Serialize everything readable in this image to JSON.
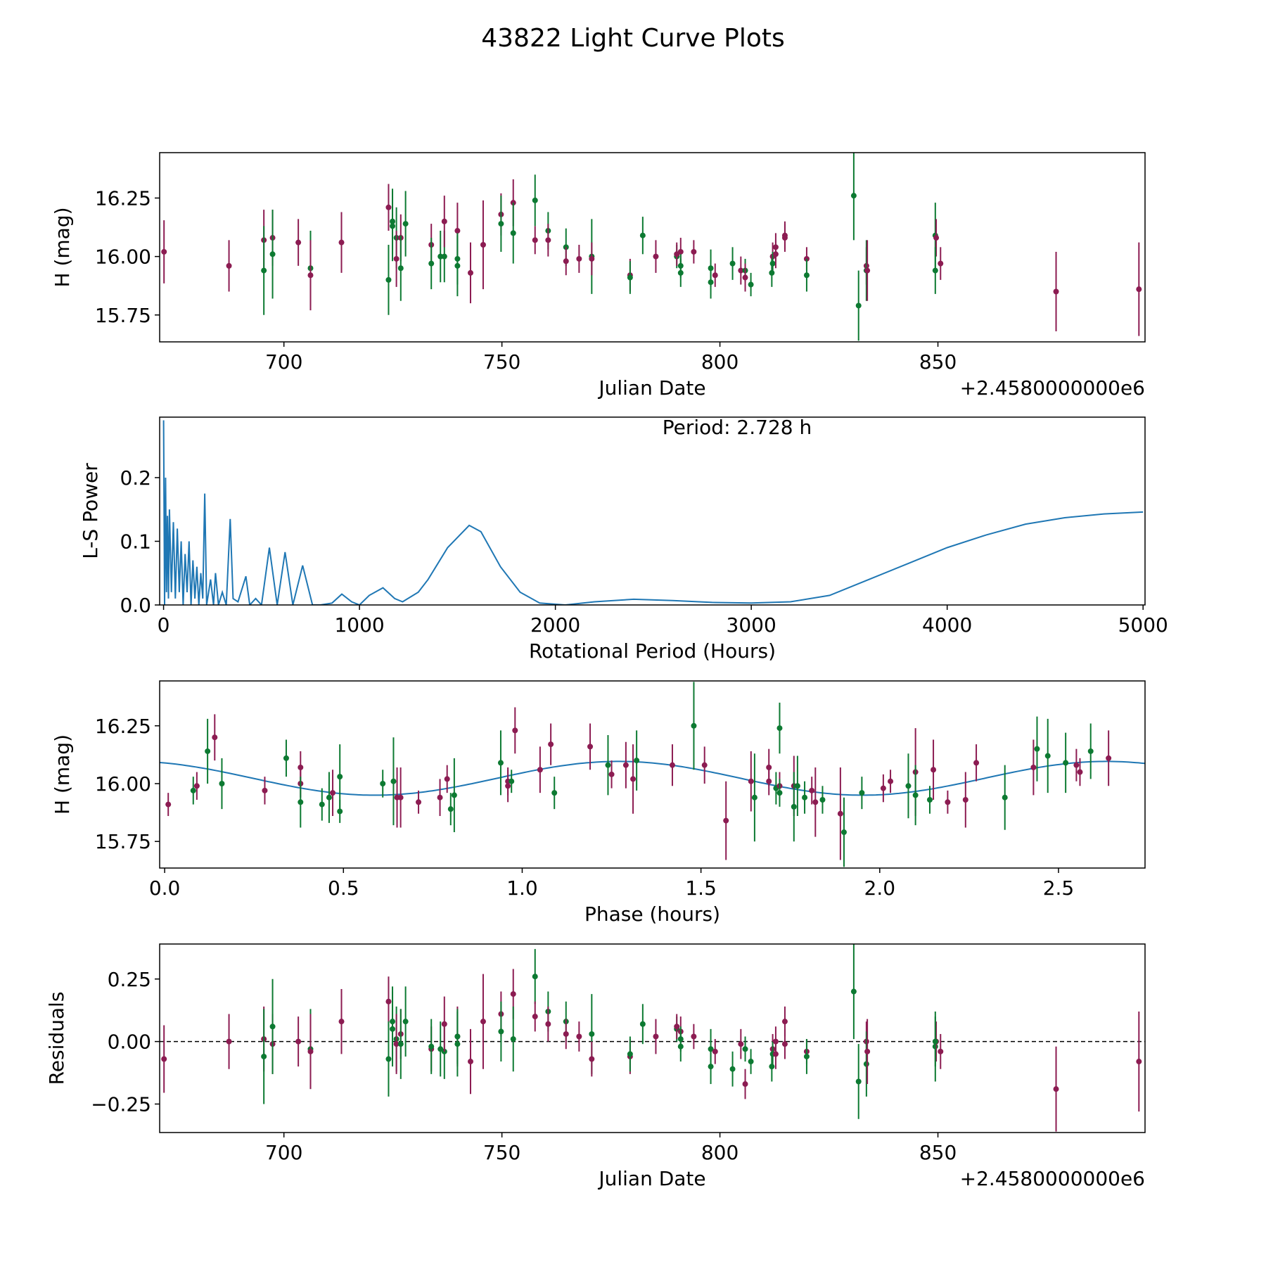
{
  "title": "43822 Light Curve Plots",
  "colors": {
    "band_a": "#8c1c52",
    "band_b": "#0d7a32",
    "line": "#1f77b4"
  },
  "chart_data": [
    {
      "id": "lightcurve",
      "type": "scatter",
      "xlabel": "Julian Date",
      "ylabel": "H (mag)",
      "offset_text": "+2.4580000000e6",
      "xlim": [
        671.5,
        897.5
      ],
      "ylim": [
        15.635,
        16.444
      ],
      "xticks": [
        700,
        750,
        800,
        850
      ],
      "yticks": [
        15.75,
        16.0,
        16.25
      ],
      "ytick_labels": [
        "15.75",
        "16.00",
        "16.25"
      ],
      "point_fields": [
        "jd_offset",
        "mag",
        "err",
        "residual",
        "band"
      ],
      "points": [
        [
          672.5,
          16.02,
          0.135,
          -0.07,
          "a"
        ],
        [
          687.4,
          15.96,
          0.11,
          0.0,
          "a"
        ],
        [
          695.4,
          16.07,
          0.13,
          0.01,
          "a"
        ],
        [
          695.4,
          15.94,
          0.19,
          -0.06,
          "b"
        ],
        [
          697.4,
          16.08,
          0.12,
          -0.01,
          "a"
        ],
        [
          697.4,
          16.01,
          0.19,
          0.06,
          "b"
        ],
        [
          703.3,
          16.06,
          0.1,
          0.0,
          "a"
        ],
        [
          706.1,
          15.95,
          0.16,
          -0.03,
          "b"
        ],
        [
          706.1,
          15.92,
          0.15,
          -0.04,
          "a"
        ],
        [
          713.2,
          16.06,
          0.13,
          0.08,
          "a"
        ],
        [
          724.0,
          16.21,
          0.1,
          0.16,
          "a"
        ],
        [
          724.0,
          15.9,
          0.15,
          -0.07,
          "b"
        ],
        [
          724.9,
          16.15,
          0.14,
          0.08,
          "b"
        ],
        [
          724.9,
          16.13,
          0.15,
          0.05,
          "b"
        ],
        [
          725.8,
          16.08,
          0.13,
          0.01,
          "b"
        ],
        [
          725.8,
          15.99,
          0.12,
          -0.01,
          "a"
        ],
        [
          726.8,
          16.08,
          0.1,
          0.03,
          "a"
        ],
        [
          726.8,
          15.95,
          0.14,
          -0.01,
          "b"
        ],
        [
          727.9,
          16.14,
          0.14,
          0.08,
          "b"
        ],
        [
          733.8,
          16.05,
          0.09,
          -0.03,
          "a"
        ],
        [
          733.8,
          15.97,
          0.11,
          -0.02,
          "b"
        ],
        [
          735.9,
          16.0,
          0.11,
          -0.03,
          "b"
        ],
        [
          736.8,
          16.0,
          0.11,
          -0.04,
          "b"
        ],
        [
          736.8,
          16.15,
          0.11,
          0.07,
          "a"
        ],
        [
          739.8,
          16.11,
          0.12,
          0.02,
          "a"
        ],
        [
          739.8,
          15.99,
          0.11,
          0.02,
          "b"
        ],
        [
          739.8,
          15.96,
          0.13,
          -0.01,
          "b"
        ],
        [
          742.8,
          15.93,
          0.13,
          -0.08,
          "a"
        ],
        [
          745.7,
          16.05,
          0.19,
          0.08,
          "a"
        ],
        [
          749.8,
          16.18,
          0.09,
          0.11,
          "a"
        ],
        [
          749.8,
          16.14,
          0.12,
          0.04,
          "b"
        ],
        [
          752.6,
          16.23,
          0.1,
          0.19,
          "a"
        ],
        [
          752.6,
          16.1,
          0.13,
          0.01,
          "b"
        ],
        [
          757.6,
          16.24,
          0.11,
          0.26,
          "b"
        ],
        [
          757.6,
          16.07,
          0.06,
          0.1,
          "a"
        ],
        [
          760.6,
          16.11,
          0.08,
          0.12,
          "b"
        ],
        [
          760.6,
          16.07,
          0.07,
          0.07,
          "a"
        ],
        [
          764.7,
          16.04,
          0.08,
          0.08,
          "b"
        ],
        [
          764.7,
          15.98,
          0.06,
          0.03,
          "a"
        ],
        [
          767.7,
          15.99,
          0.06,
          0.02,
          "a"
        ],
        [
          770.6,
          16.0,
          0.16,
          0.03,
          "b"
        ],
        [
          770.6,
          15.99,
          0.07,
          -0.07,
          "a"
        ],
        [
          779.4,
          15.92,
          0.07,
          -0.06,
          "a"
        ],
        [
          779.4,
          15.91,
          0.07,
          -0.05,
          "b"
        ],
        [
          782.3,
          16.09,
          0.08,
          0.07,
          "b"
        ],
        [
          785.3,
          16.0,
          0.07,
          0.02,
          "a"
        ],
        [
          790.1,
          16.0,
          0.05,
          0.05,
          "b"
        ],
        [
          790.1,
          16.01,
          0.05,
          0.06,
          "a"
        ],
        [
          791.0,
          16.02,
          0.06,
          0.04,
          "a"
        ],
        [
          791.0,
          15.96,
          0.05,
          0.01,
          "b"
        ],
        [
          791.0,
          15.93,
          0.06,
          -0.02,
          "b"
        ],
        [
          794.0,
          16.02,
          0.05,
          0.02,
          "a"
        ],
        [
          797.9,
          15.95,
          0.08,
          -0.03,
          "b"
        ],
        [
          797.9,
          15.89,
          0.07,
          -0.1,
          "b"
        ],
        [
          798.9,
          15.92,
          0.05,
          -0.04,
          "a"
        ],
        [
          802.9,
          15.97,
          0.07,
          -0.11,
          "b"
        ],
        [
          804.8,
          15.94,
          0.06,
          -0.01,
          "a"
        ],
        [
          805.8,
          15.94,
          0.05,
          -0.03,
          "b"
        ],
        [
          805.8,
          15.91,
          0.06,
          -0.17,
          "a"
        ],
        [
          807.1,
          15.88,
          0.05,
          -0.08,
          "b"
        ],
        [
          811.9,
          15.93,
          0.06,
          -0.1,
          "b"
        ],
        [
          812.1,
          16.0,
          0.06,
          -0.03,
          "a"
        ],
        [
          812.1,
          15.97,
          0.05,
          -0.05,
          "b"
        ],
        [
          812.8,
          16.04,
          0.06,
          0.0,
          "a"
        ],
        [
          812.8,
          16.01,
          0.06,
          -0.05,
          "a"
        ],
        [
          814.9,
          16.09,
          0.06,
          0.08,
          "a"
        ],
        [
          814.9,
          16.08,
          0.06,
          -0.01,
          "a"
        ],
        [
          819.9,
          15.99,
          0.05,
          -0.04,
          "a"
        ],
        [
          819.9,
          15.92,
          0.07,
          -0.06,
          "b"
        ],
        [
          830.7,
          16.26,
          0.19,
          0.2,
          "b"
        ],
        [
          831.8,
          15.79,
          0.15,
          -0.16,
          "b"
        ],
        [
          833.6,
          15.96,
          0.08,
          0.0,
          "a"
        ],
        [
          833.6,
          15.94,
          0.13,
          -0.09,
          "b"
        ],
        [
          833.8,
          15.94,
          0.13,
          -0.04,
          "a"
        ],
        [
          849.4,
          16.09,
          0.14,
          -0.02,
          "b"
        ],
        [
          849.6,
          16.08,
          0.08,
          0.0,
          "a"
        ],
        [
          849.4,
          15.94,
          0.1,
          0.0,
          "b"
        ],
        [
          850.6,
          15.97,
          0.07,
          -0.04,
          "a"
        ],
        [
          877.1,
          15.85,
          0.17,
          -0.19,
          "a"
        ],
        [
          896.1,
          15.86,
          0.2,
          -0.08,
          "a"
        ]
      ]
    },
    {
      "id": "periodogram",
      "type": "line",
      "annotation": "Period: 2.728 h",
      "xlabel": "Rotational Period (Hours)",
      "ylabel": "L-S Power",
      "xlim": [
        -20,
        5010
      ],
      "ylim": [
        0,
        0.295
      ],
      "xticks": [
        0,
        1000,
        2000,
        3000,
        4000,
        5000
      ],
      "yticks": [
        0.0,
        0.1,
        0.2
      ],
      "ytick_labels": [
        "0.0",
        "0.1",
        "0.2"
      ],
      "x": [
        0,
        5,
        10,
        15,
        20,
        25,
        30,
        40,
        50,
        60,
        70,
        80,
        90,
        100,
        110,
        120,
        130,
        140,
        150,
        160,
        170,
        180,
        190,
        200,
        210,
        220,
        240,
        255,
        265,
        280,
        300,
        320,
        340,
        355,
        380,
        420,
        440,
        470,
        500,
        540,
        580,
        620,
        660,
        710,
        760,
        800,
        860,
        910,
        960,
        1000,
        1050,
        1120,
        1180,
        1220,
        1300,
        1350,
        1450,
        1560,
        1620,
        1720,
        1820,
        1920,
        2050,
        2200,
        2400,
        2600,
        2800,
        3000,
        3200,
        3400,
        3600,
        3800,
        4000,
        4200,
        4400,
        4600,
        4800,
        5000
      ],
      "y": [
        0.29,
        0.0,
        0.2,
        0.02,
        0.14,
        0.01,
        0.15,
        0.02,
        0.13,
        0.01,
        0.12,
        0.02,
        0.1,
        0.0,
        0.08,
        0.02,
        0.1,
        0.0,
        0.07,
        0.01,
        0.06,
        0.0,
        0.05,
        0.01,
        0.175,
        0.0,
        0.04,
        0.0,
        0.05,
        0.0,
        0.02,
        0.0,
        0.135,
        0.01,
        0.005,
        0.045,
        0.0,
        0.01,
        0.0,
        0.09,
        0.0,
        0.083,
        0.0,
        0.062,
        0.0,
        0.0,
        0.003,
        0.017,
        0.005,
        0.0,
        0.015,
        0.027,
        0.01,
        0.005,
        0.02,
        0.04,
        0.09,
        0.125,
        0.115,
        0.06,
        0.02,
        0.003,
        0.0,
        0.005,
        0.009,
        0.007,
        0.004,
        0.003,
        0.005,
        0.015,
        0.04,
        0.065,
        0.09,
        0.11,
        0.127,
        0.137,
        0.143,
        0.146
      ]
    },
    {
      "id": "phased",
      "type": "scatter",
      "xlabel": "Phase (hours)",
      "ylabel": "H (mag)",
      "xlim": [
        -0.014,
        2.742
      ],
      "ylim": [
        15.635,
        16.444
      ],
      "xticks": [
        0.0,
        0.5,
        1.0,
        1.5,
        2.0,
        2.5
      ],
      "xtick_labels": [
        "0.0",
        "0.5",
        "1.0",
        "1.5",
        "2.0",
        "2.5"
      ],
      "yticks": [
        15.75,
        16.0,
        16.25
      ],
      "ytick_labels": [
        "15.75",
        "16.00",
        "16.25"
      ],
      "model": {
        "mean": 16.023,
        "amplitude": 0.073,
        "peak_phase": 1.27,
        "cycle": 1.364
      },
      "point_fields": [
        "phase",
        "mag",
        "err",
        "band"
      ],
      "points": [
        [
          0.01,
          15.91,
          0.05,
          "a"
        ],
        [
          0.08,
          15.97,
          0.06,
          "b"
        ],
        [
          0.09,
          15.99,
          0.06,
          "a"
        ],
        [
          0.12,
          16.14,
          0.14,
          "b"
        ],
        [
          0.14,
          16.2,
          0.1,
          "a"
        ],
        [
          0.16,
          16.0,
          0.11,
          "b"
        ],
        [
          0.28,
          15.97,
          0.06,
          "a"
        ],
        [
          0.34,
          16.11,
          0.08,
          "b"
        ],
        [
          0.38,
          16.07,
          0.07,
          "a"
        ],
        [
          0.38,
          16.0,
          0.06,
          "a"
        ],
        [
          0.38,
          15.92,
          0.11,
          "b"
        ],
        [
          0.44,
          15.91,
          0.07,
          "b"
        ],
        [
          0.46,
          15.94,
          0.11,
          "b"
        ],
        [
          0.47,
          15.96,
          0.1,
          "a"
        ],
        [
          0.49,
          16.03,
          0.14,
          "b"
        ],
        [
          0.49,
          15.88,
          0.05,
          "b"
        ],
        [
          0.61,
          16.0,
          0.06,
          "b"
        ],
        [
          0.64,
          16.01,
          0.19,
          "b"
        ],
        [
          0.65,
          15.94,
          0.13,
          "a"
        ],
        [
          0.66,
          15.94,
          0.13,
          "a"
        ],
        [
          0.71,
          15.92,
          0.05,
          "a"
        ],
        [
          0.77,
          15.94,
          0.08,
          "a"
        ],
        [
          0.79,
          16.02,
          0.06,
          "a"
        ],
        [
          0.8,
          15.89,
          0.07,
          "b"
        ],
        [
          0.81,
          15.95,
          0.16,
          "b"
        ],
        [
          0.94,
          16.09,
          0.14,
          "b"
        ],
        [
          0.96,
          15.99,
          0.07,
          "a"
        ],
        [
          0.96,
          16.01,
          0.06,
          "a"
        ],
        [
          0.97,
          16.01,
          0.05,
          "b"
        ],
        [
          0.98,
          16.23,
          0.1,
          "a"
        ],
        [
          1.05,
          16.06,
          0.1,
          "a"
        ],
        [
          1.08,
          16.17,
          0.09,
          "a"
        ],
        [
          1.09,
          15.96,
          0.07,
          "b"
        ],
        [
          1.19,
          16.16,
          0.1,
          "a"
        ],
        [
          1.24,
          16.08,
          0.13,
          "b"
        ],
        [
          1.25,
          16.04,
          0.06,
          "a"
        ],
        [
          1.29,
          16.08,
          0.1,
          "a"
        ],
        [
          1.31,
          16.02,
          0.15,
          "a"
        ],
        [
          1.32,
          16.1,
          0.13,
          "b"
        ],
        [
          1.42,
          16.08,
          0.09,
          "a"
        ],
        [
          1.48,
          16.25,
          0.19,
          "b"
        ],
        [
          1.51,
          16.08,
          0.08,
          "a"
        ],
        [
          1.57,
          15.84,
          0.17,
          "a"
        ],
        [
          1.64,
          16.01,
          0.13,
          "a"
        ],
        [
          1.65,
          15.94,
          0.19,
          "b"
        ],
        [
          1.69,
          16.07,
          0.08,
          "a"
        ],
        [
          1.69,
          16.01,
          0.06,
          "a"
        ],
        [
          1.71,
          15.98,
          0.07,
          "b"
        ],
        [
          1.72,
          16.24,
          0.11,
          "b"
        ],
        [
          1.72,
          15.99,
          0.06,
          "a"
        ],
        [
          1.72,
          15.96,
          0.06,
          "b"
        ],
        [
          1.76,
          15.99,
          0.13,
          "a"
        ],
        [
          1.76,
          15.9,
          0.15,
          "b"
        ],
        [
          1.77,
          15.99,
          0.13,
          "b"
        ],
        [
          1.79,
          15.94,
          0.07,
          "b"
        ],
        [
          1.81,
          15.97,
          0.06,
          "a"
        ],
        [
          1.82,
          15.92,
          0.15,
          "a"
        ],
        [
          1.84,
          15.93,
          0.06,
          "b"
        ],
        [
          1.89,
          15.87,
          0.2,
          "a"
        ],
        [
          1.9,
          15.79,
          0.15,
          "b"
        ],
        [
          1.95,
          15.96,
          0.07,
          "b"
        ],
        [
          2.01,
          15.98,
          0.06,
          "a"
        ],
        [
          2.03,
          16.01,
          0.05,
          "a"
        ],
        [
          2.08,
          15.99,
          0.14,
          "b"
        ],
        [
          2.1,
          16.05,
          0.19,
          "a"
        ],
        [
          2.1,
          15.95,
          0.13,
          "b"
        ],
        [
          2.14,
          15.93,
          0.06,
          "b"
        ],
        [
          2.15,
          16.06,
          0.13,
          "a"
        ],
        [
          2.19,
          15.92,
          0.05,
          "a"
        ],
        [
          2.24,
          15.93,
          0.12,
          "a"
        ],
        [
          2.27,
          16.09,
          0.08,
          "a"
        ],
        [
          2.35,
          15.94,
          0.14,
          "b"
        ],
        [
          2.43,
          16.07,
          0.12,
          "a"
        ],
        [
          2.44,
          16.15,
          0.14,
          "b"
        ],
        [
          2.47,
          16.12,
          0.16,
          "b"
        ],
        [
          2.52,
          16.09,
          0.13,
          "b"
        ],
        [
          2.55,
          16.08,
          0.07,
          "a"
        ],
        [
          2.56,
          16.05,
          0.06,
          "a"
        ],
        [
          2.59,
          16.14,
          0.12,
          "b"
        ],
        [
          2.64,
          16.11,
          0.12,
          "a"
        ]
      ]
    },
    {
      "id": "residuals",
      "type": "scatter",
      "source": "lightcurve",
      "xlabel": "Julian Date",
      "ylabel": "Residuals",
      "offset_text": "+2.4580000000e6",
      "xlim": [
        671.5,
        897.5
      ],
      "ylim": [
        -0.364,
        0.39
      ],
      "xticks": [
        700,
        750,
        800,
        850
      ],
      "yticks": [
        -0.25,
        0.0,
        0.25
      ],
      "ytick_labels": [
        "−0.25",
        "0.00",
        "0.25"
      ],
      "reference_line": 0
    }
  ]
}
